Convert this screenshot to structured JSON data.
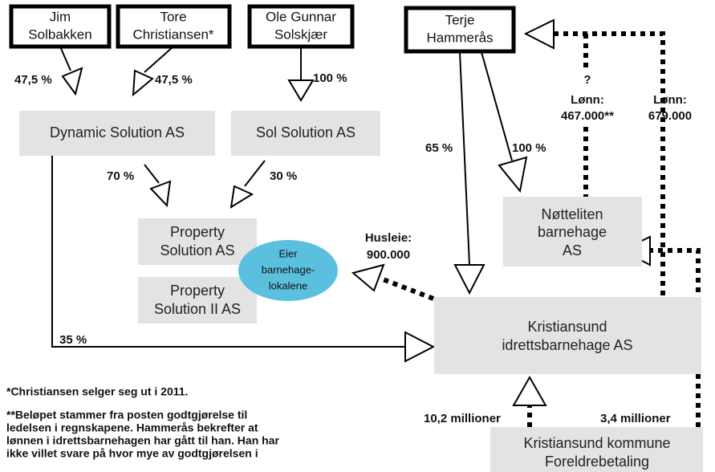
{
  "persons": [
    {
      "label": [
        "Jim",
        "Solbakken"
      ]
    },
    {
      "label": [
        "Tore",
        "Christiansen*"
      ]
    },
    {
      "label": [
        "Ole Gunnar",
        "Solskjær"
      ]
    },
    {
      "label": [
        "Terje",
        "Hammerås"
      ]
    }
  ],
  "companies": [
    {
      "label": [
        "Dynamic Solution AS"
      ]
    },
    {
      "label": [
        "Sol Solution AS"
      ]
    },
    {
      "label": [
        "Property",
        "Solution AS"
      ]
    },
    {
      "label": [
        "Property",
        "Solution II AS"
      ]
    },
    {
      "label": [
        "Nøtteliten",
        "barnehage",
        "AS"
      ]
    },
    {
      "label": [
        "Kristiansund",
        "idrettsbarnehage AS"
      ]
    },
    {
      "label": [
        "Kristiansund kommune",
        "Foreldrebetaling"
      ]
    }
  ],
  "bubble": {
    "label": [
      "Eier",
      "barnehage-",
      "lokalene"
    ]
  },
  "edges": [
    {
      "label": [
        "47,5 %"
      ]
    },
    {
      "label": [
        "47,5 %"
      ]
    },
    {
      "label": [
        "100 %"
      ]
    },
    {
      "label": [
        "70 %"
      ]
    },
    {
      "label": [
        "30 %"
      ]
    },
    {
      "label": [
        "35 %"
      ]
    },
    {
      "label": [
        "65 %"
      ]
    },
    {
      "label": [
        "100 %"
      ]
    },
    {
      "label": [
        "Husleie:",
        "900.000"
      ]
    },
    {
      "label": [
        "?",
        "Lønn:",
        "467.000**"
      ]
    },
    {
      "label": [
        "Lønn:",
        "679.000"
      ]
    },
    {
      "label": [
        "10,2 millioner"
      ]
    },
    {
      "label": [
        "3,4 millioner"
      ]
    }
  ],
  "notes": [
    [
      "*Christiansen selger seg ut i 2011."
    ],
    [
      "**Beløpet stammer fra posten godtgjørelse til",
      "ledelsen i regnskapene. Hammerås bekrefter at",
      "lønnen i idrettsbarnehagen har gått til han. Han har",
      "ikke villet svare på hvor mye av godtgjørelsen i"
    ]
  ]
}
